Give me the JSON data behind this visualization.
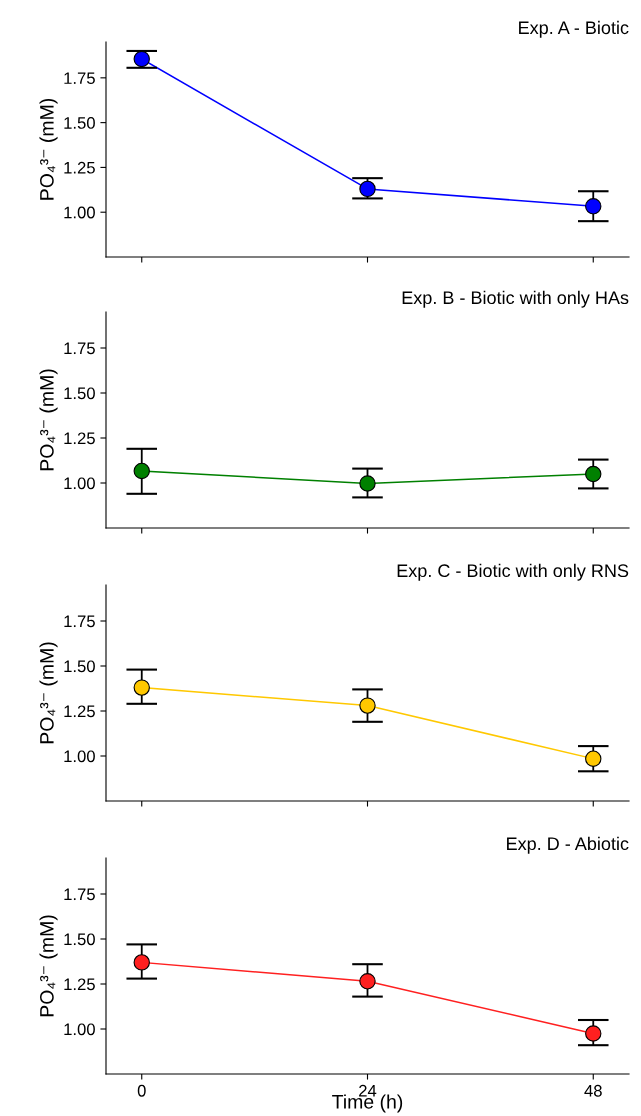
{
  "chart_data": [
    {
      "type": "line",
      "title": "Exp. A - Biotic",
      "ylabel": "PO₄³⁻ (mM)",
      "x": [
        0,
        24,
        48
      ],
      "xlim": [
        -3.8,
        51.8
      ],
      "xticks": [
        0,
        24,
        48
      ],
      "ylim": [
        0.75,
        1.95
      ],
      "yticks": [
        {
          "value": 1.0,
          "label": "1.00"
        },
        {
          "value": 1.25,
          "label": "1.25"
        },
        {
          "value": 1.5,
          "label": "1.50"
        },
        {
          "value": 1.75,
          "label": "1.75"
        }
      ],
      "tick_labels": "y",
      "marker": "circle",
      "grid": false,
      "series": [
        {
          "color": "#0000ff",
          "values": [
            1.855,
            1.13,
            1.033
          ],
          "errors": [
            [
              1.806,
              1.9
            ],
            [
              1.077,
              1.19
            ],
            [
              0.95,
              1.117
            ]
          ]
        }
      ]
    },
    {
      "type": "line",
      "title": "Exp. B - Biotic with only HAs",
      "ylabel": "PO₄³⁻ (mM)",
      "x": [
        0,
        24,
        48
      ],
      "xlim": [
        -3.8,
        51.8
      ],
      "xticks": [
        0,
        24,
        48
      ],
      "ylim": [
        0.75,
        1.95
      ],
      "yticks": [
        {
          "value": 1.0,
          "label": "1.00"
        },
        {
          "value": 1.25,
          "label": "1.25"
        },
        {
          "value": 1.5,
          "label": "1.50"
        },
        {
          "value": 1.75,
          "label": "1.75"
        }
      ],
      "tick_labels": "y",
      "marker": "circle",
      "grid": false,
      "series": [
        {
          "color": "#008000",
          "values": [
            1.067,
            0.997,
            1.05
          ],
          "errors": [
            [
              0.94,
              1.19
            ],
            [
              0.92,
              1.08
            ],
            [
              0.97,
              1.13
            ]
          ]
        }
      ]
    },
    {
      "type": "line",
      "title": "Exp. C - Biotic with only RNS",
      "ylabel": "PO₄³⁻ (mM)",
      "x": [
        0,
        24,
        48
      ],
      "xlim": [
        -3.8,
        51.8
      ],
      "xticks": [
        0,
        24,
        48
      ],
      "ylim": [
        0.75,
        1.95
      ],
      "yticks": [
        {
          "value": 1.0,
          "label": "1.00"
        },
        {
          "value": 1.25,
          "label": "1.25"
        },
        {
          "value": 1.5,
          "label": "1.50"
        },
        {
          "value": 1.75,
          "label": "1.75"
        }
      ],
      "tick_labels": "y",
      "marker": "circle",
      "grid": false,
      "series": [
        {
          "color": "#ffc800",
          "values": [
            1.38,
            1.28,
            0.985
          ],
          "errors": [
            [
              1.29,
              1.48
            ],
            [
              1.19,
              1.37
            ],
            [
              0.915,
              1.055
            ]
          ]
        }
      ]
    },
    {
      "type": "line",
      "title": "Exp. D - Abiotic",
      "ylabel": "PO₄³⁻ (mM)",
      "xlabel": "Time (h)",
      "x": [
        0,
        24,
        48
      ],
      "xlim": [
        -3.8,
        51.8
      ],
      "xticks": [
        0,
        24,
        48
      ],
      "ylim": [
        0.75,
        1.95
      ],
      "yticks": [
        {
          "value": 1.0,
          "label": "1.00"
        },
        {
          "value": 1.25,
          "label": "1.25"
        },
        {
          "value": 1.5,
          "label": "1.50"
        },
        {
          "value": 1.75,
          "label": "1.75"
        }
      ],
      "marker": "circle",
      "grid": false,
      "series": [
        {
          "color": "#ff2020",
          "values": [
            1.37,
            1.265,
            0.975
          ],
          "errors": [
            [
              1.28,
              1.47
            ],
            [
              1.18,
              1.36
            ],
            [
              0.91,
              1.05
            ]
          ]
        }
      ]
    }
  ]
}
